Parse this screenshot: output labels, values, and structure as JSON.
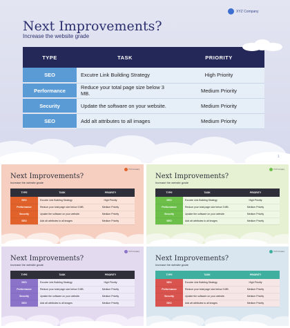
{
  "main": {
    "title": "Next Improvements?",
    "subtitle": "Increase the website grade",
    "company": "XYZ Company",
    "page_number": "1",
    "headers": [
      "TYPE",
      "TASK",
      "PRIORITY"
    ],
    "rows": [
      {
        "type": "SEO",
        "task": "Excutre Link Building Strategy",
        "priority": "High Priority"
      },
      {
        "type": "Performance",
        "task": "Reduce your total page size  below 3 MB.",
        "priority": "Medium Priority"
      },
      {
        "type": "Security",
        "task": "Update the software on your website.",
        "priority": "Medium Priority"
      },
      {
        "type": "SEO",
        "task": "Add alt attributes to all images",
        "priority": "Medium Priority"
      }
    ],
    "colors": {
      "header": "#232858",
      "type_cell": "#5b9bd5",
      "background": "#dfe2f0"
    }
  },
  "variants": [
    {
      "title": "Next Improvements?",
      "subtitle": "Increase the website grade",
      "company": "XYZ Company",
      "headers": [
        "TYPE",
        "TASK",
        "PRIORITY"
      ],
      "rows": [
        {
          "type": "SEO",
          "task": "Excutre Link Building Strategy",
          "priority": "High Priority"
        },
        {
          "type": "Performance",
          "task": "Reduce your total page size  below 3 MB.",
          "priority": "Medium Priority"
        },
        {
          "type": "Security",
          "task": "Update the software on your website.",
          "priority": "Medium Priority"
        },
        {
          "type": "SEO",
          "task": "Add alt attributes to all images",
          "priority": "Medium Priority"
        }
      ],
      "accent": "#e2622b"
    },
    {
      "title": "Next Improvements?",
      "subtitle": "Increase the website grade",
      "company": "XYZ Company",
      "headers": [
        "TYPE",
        "TASK",
        "PRIORITY"
      ],
      "rows": [
        {
          "type": "SEO",
          "task": "Excutre Link Building Strategy",
          "priority": "High Priority"
        },
        {
          "type": "Performance",
          "task": "Reduce your total page size  below 3 MB.",
          "priority": "Medium Priority"
        },
        {
          "type": "Security",
          "task": "Update the software on your website.",
          "priority": "Medium Priority"
        },
        {
          "type": "SEO",
          "task": "Add alt attributes to all images",
          "priority": "Medium Priority"
        }
      ],
      "accent": "#6cc04a"
    },
    {
      "title": "Next Improvements?",
      "subtitle": "Increase the website grade",
      "company": "XYZ Company",
      "headers": [
        "TYPE",
        "TASK",
        "PRIORITY"
      ],
      "rows": [
        {
          "type": "SEO",
          "task": "Excutre Link Building Strategy",
          "priority": "High Priority"
        },
        {
          "type": "Performance",
          "task": "Reduce your total page size  below 3 MB.",
          "priority": "Medium Priority"
        },
        {
          "type": "Security",
          "task": "Update the software on your website.",
          "priority": "Medium Priority"
        },
        {
          "type": "SEO",
          "task": "Add alt attributes to all images",
          "priority": "Medium Priority"
        }
      ],
      "accent": "#8a73c9"
    },
    {
      "title": "Next Improvements?",
      "subtitle": "Increase the website grade",
      "company": "XYZ Company",
      "headers": [
        "TYPE",
        "TASK",
        "PRIORITY"
      ],
      "rows": [
        {
          "type": "SEO",
          "task": "Excutre Link Building Strategy",
          "priority": "High Priority"
        },
        {
          "type": "Performance",
          "task": "Reduce your total page size  below 3 MB.",
          "priority": "Medium Priority"
        },
        {
          "type": "Security",
          "task": "Update the software on your website.",
          "priority": "Medium Priority"
        },
        {
          "type": "SEO",
          "task": "Add alt attributes to all images",
          "priority": "Medium Priority"
        }
      ],
      "accent": "#d9534f"
    }
  ]
}
